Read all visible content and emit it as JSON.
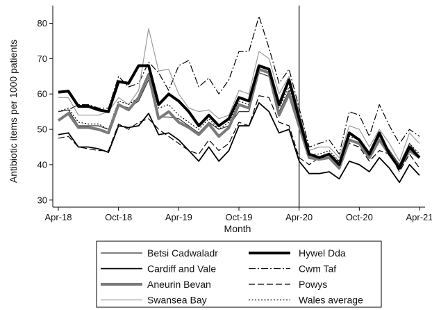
{
  "chart_data": {
    "type": "line",
    "title": "",
    "xlabel": "Month",
    "ylabel": "Antibiotic items per 1000 patients",
    "ylim": [
      28,
      85
    ],
    "yticks": [
      30,
      40,
      50,
      60,
      70,
      80
    ],
    "x_tick_labels": [
      "Apr-18",
      "Oct-18",
      "Apr-19",
      "Oct-19",
      "Apr-20",
      "Oct-20",
      "Apr-21"
    ],
    "x_tick_positions": [
      0,
      6,
      12,
      18,
      24,
      30,
      36
    ],
    "x": [
      "Apr-18",
      "May-18",
      "Jun-18",
      "Jul-18",
      "Aug-18",
      "Sep-18",
      "Oct-18",
      "Nov-18",
      "Dec-18",
      "Jan-19",
      "Feb-19",
      "Mar-19",
      "Apr-19",
      "May-19",
      "Jun-19",
      "Jul-19",
      "Aug-19",
      "Sep-19",
      "Oct-19",
      "Nov-19",
      "Dec-19",
      "Jan-20",
      "Feb-20",
      "Mar-20",
      "Apr-20",
      "May-20",
      "Jun-20",
      "Jul-20",
      "Aug-20",
      "Sep-20",
      "Oct-20",
      "Nov-20",
      "Dec-20",
      "Jan-21",
      "Feb-21",
      "Mar-21",
      "Apr-21"
    ],
    "vertical_line_at": "Apr-20",
    "grid": false,
    "legend": "bottom",
    "series": [
      {
        "name": "Betsi Cadwaladr",
        "color": "#333333",
        "dash": "solid",
        "width": 1.2,
        "values": [
          55,
          55.5,
          51,
          51,
          51,
          50,
          57,
          56,
          58,
          64,
          53.5,
          53.5,
          53,
          51,
          49,
          52,
          50,
          51,
          55,
          55,
          66,
          65,
          55,
          61,
          52,
          42,
          42,
          43,
          40,
          47,
          46,
          43,
          48,
          44,
          40,
          46,
          42
        ]
      },
      {
        "name": "Hywel Dda",
        "color": "#000000",
        "dash": "solid",
        "width": 4,
        "values": [
          60.5,
          60.8,
          56.5,
          56.5,
          55.5,
          55,
          63.5,
          63,
          68,
          68,
          57,
          60,
          58,
          55,
          51,
          54,
          51,
          53,
          59,
          58,
          68,
          67,
          57,
          64,
          53,
          43,
          42,
          43,
          40,
          49,
          47,
          43,
          49,
          43,
          39,
          45,
          42
        ]
      },
      {
        "name": "Cardiff and Vale",
        "color": "#000000",
        "dash": "solid",
        "width": 1.8,
        "values": [
          48.5,
          49,
          45,
          45,
          44.5,
          43.5,
          51,
          50.5,
          51,
          54.5,
          48.5,
          49,
          47,
          44,
          41,
          45,
          41,
          44,
          51,
          51,
          57.5,
          55,
          49,
          50,
          41,
          37.5,
          37.5,
          38,
          36,
          41,
          40,
          38,
          42,
          39,
          35,
          40,
          37
        ]
      },
      {
        "name": "Cwm Taf",
        "color": "#000000",
        "dash": "dashdot",
        "width": 1.2,
        "values": [
          55,
          55.5,
          57,
          57,
          56,
          56,
          65,
          62,
          63,
          69,
          66,
          61,
          68,
          69.5,
          62,
          64.5,
          60,
          64,
          72,
          72,
          82,
          73,
          63,
          67,
          56,
          45,
          46,
          47,
          43,
          55,
          54,
          48,
          57,
          51,
          46,
          50,
          48
        ]
      },
      {
        "name": "Aneurin Bevan",
        "color": "#7a7a7a",
        "dash": "solid",
        "width": 4,
        "values": [
          52.5,
          54.5,
          50.5,
          50.5,
          50,
          49,
          57,
          55.5,
          59,
          65.5,
          53,
          55,
          52,
          50.5,
          48.5,
          51.5,
          48,
          50.5,
          57,
          56,
          67,
          66,
          54,
          60,
          51,
          42,
          41.5,
          42,
          39,
          47,
          46,
          42,
          47,
          43,
          39,
          44,
          42
        ]
      },
      {
        "name": "Powys",
        "color": "#000000",
        "dash": "dashed",
        "width": 1.2,
        "values": [
          47.5,
          48,
          45,
          44.5,
          44,
          44,
          51.5,
          50,
          52,
          53,
          50,
          48,
          46,
          44,
          43,
          47,
          44,
          46,
          52,
          51,
          59.5,
          59,
          52,
          51,
          42,
          40,
          42,
          43,
          41,
          46,
          45,
          41,
          44,
          43,
          38,
          43,
          39
        ]
      },
      {
        "name": "Swansea Bay",
        "color": "#9a9a9a",
        "dash": "solid",
        "width": 1.2,
        "values": [
          59,
          59,
          54,
          54,
          54,
          55,
          59,
          57,
          61,
          78.5,
          66.5,
          67,
          60,
          56,
          55,
          55.5,
          53,
          54,
          61,
          60,
          72,
          70,
          60,
          65,
          55,
          44,
          45,
          45,
          42,
          51,
          50,
          45,
          50,
          46,
          41,
          49,
          46
        ]
      },
      {
        "name": "Wales average",
        "color": "#000000",
        "dash": "dotted",
        "width": 1.2,
        "values": [
          55,
          56,
          52,
          51.5,
          51.5,
          50,
          58,
          57,
          59,
          66,
          56,
          57,
          54,
          52,
          50,
          53,
          50,
          52,
          58,
          57,
          68,
          67,
          56,
          62,
          53,
          43,
          43,
          44,
          41,
          48,
          47,
          43,
          48,
          44,
          40,
          46,
          43
        ]
      }
    ]
  }
}
